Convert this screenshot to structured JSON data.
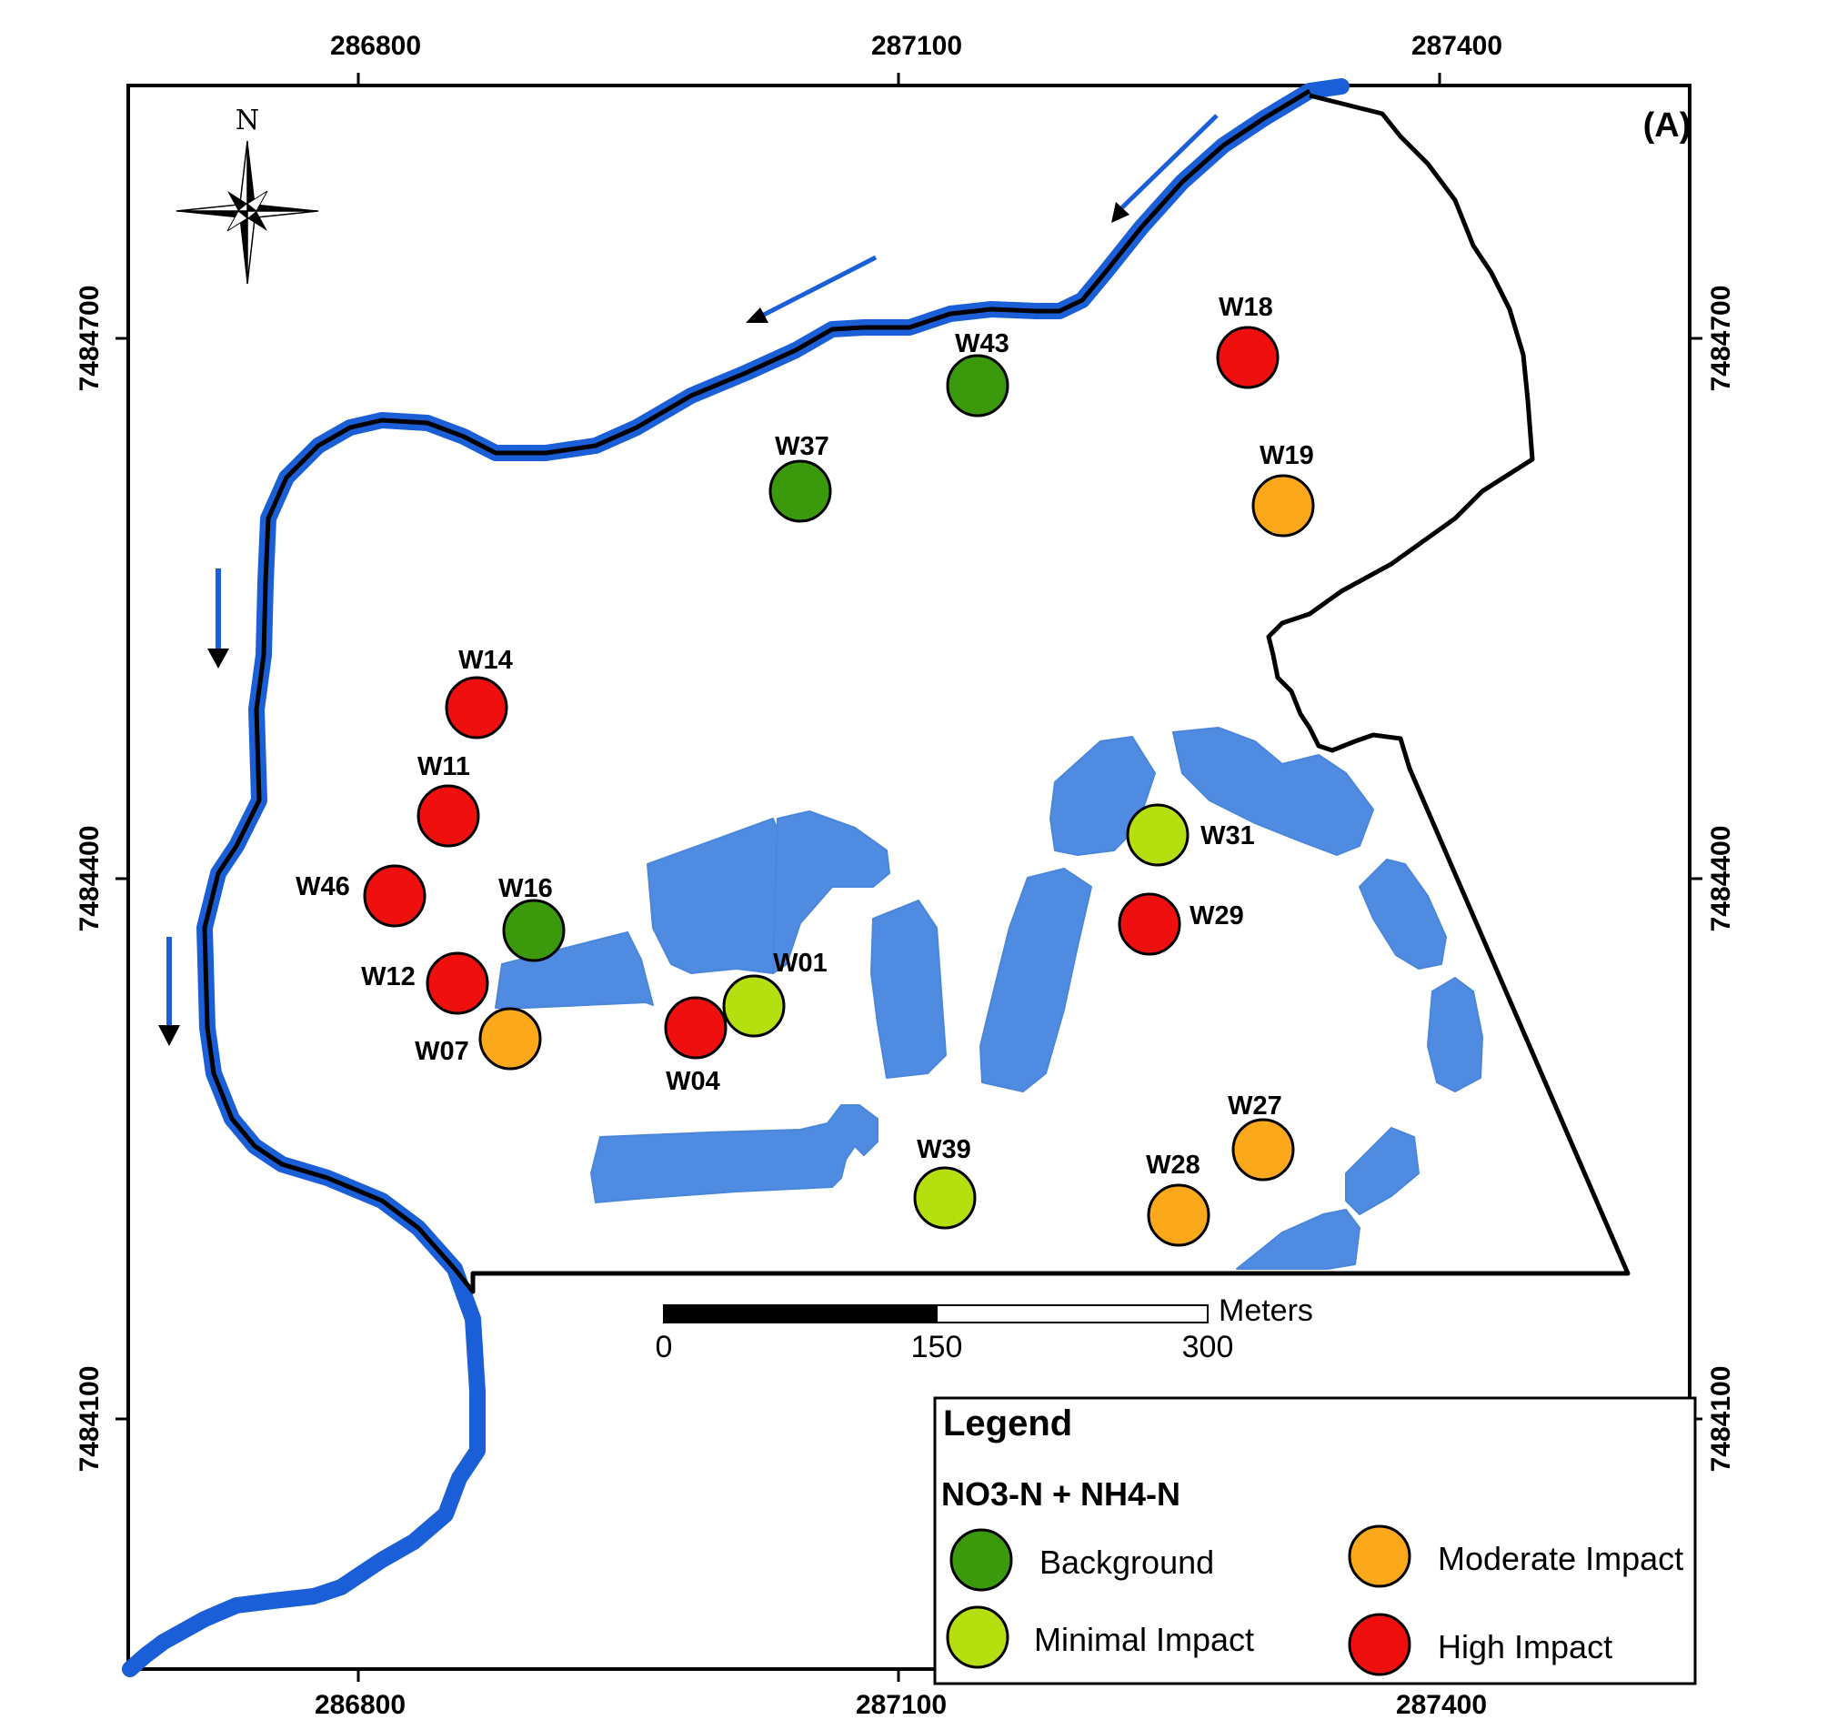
{
  "panel_label": "(A)",
  "north_label": "N",
  "axes": {
    "x_ticks": [
      "286800",
      "287100",
      "287400"
    ],
    "y_ticks": [
      "7484700",
      "7484400",
      "7484100"
    ]
  },
  "scale_bar": {
    "unit": "Meters",
    "ticks": [
      "0",
      "150",
      "300"
    ]
  },
  "legend": {
    "title": "Legend",
    "subtitle": "NO3-N + NH4-N",
    "items": [
      {
        "label": "Background",
        "color": "#3a9a0c"
      },
      {
        "label": "Minimal Impact",
        "color": "#b5df0e"
      },
      {
        "label": "Moderate Impact",
        "color": "#fba81a"
      },
      {
        "label": "High Impact",
        "color": "#ef0f0f"
      }
    ]
  },
  "colors": {
    "river": "#1a5fd8",
    "ponds": "#4f8be0",
    "boundary": "#000000",
    "flow_arrow": "#1a5fd8"
  },
  "wells": [
    {
      "id": "W18",
      "category": "High Impact"
    },
    {
      "id": "W43",
      "category": "Background"
    },
    {
      "id": "W37",
      "category": "Background"
    },
    {
      "id": "W19",
      "category": "Moderate Impact"
    },
    {
      "id": "W14",
      "category": "High Impact"
    },
    {
      "id": "W11",
      "category": "High Impact"
    },
    {
      "id": "W46",
      "category": "High Impact"
    },
    {
      "id": "W16",
      "category": "Background"
    },
    {
      "id": "W12",
      "category": "High Impact"
    },
    {
      "id": "W07",
      "category": "Moderate Impact"
    },
    {
      "id": "W04",
      "category": "High Impact"
    },
    {
      "id": "W01",
      "category": "Minimal Impact"
    },
    {
      "id": "W31",
      "category": "Minimal Impact"
    },
    {
      "id": "W29",
      "category": "High Impact"
    },
    {
      "id": "W39",
      "category": "Minimal Impact"
    },
    {
      "id": "W27",
      "category": "Moderate Impact"
    },
    {
      "id": "W28",
      "category": "Moderate Impact"
    }
  ]
}
